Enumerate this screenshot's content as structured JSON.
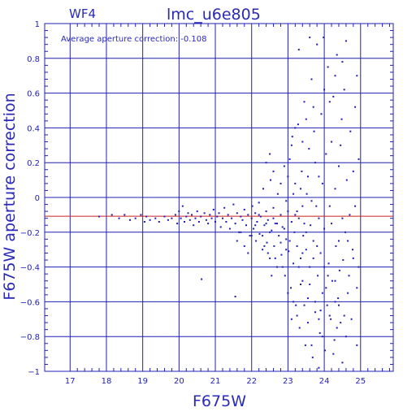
{
  "chart_data": {
    "type": "scatter",
    "title": "lmc_u6e805",
    "panel_label": "WF4",
    "annotation": "Average aperture correction: -0.108",
    "xlabel": "F675W",
    "ylabel": "F675W aperture correction",
    "xlim": [
      16.3,
      25.9
    ],
    "ylim": [
      -1,
      1
    ],
    "xticks": [
      "17",
      "18",
      "19",
      "20",
      "21",
      "22",
      "23",
      "24",
      "25"
    ],
    "yticks": [
      "1",
      "0.8",
      "0.6",
      "0.4",
      "0.2",
      "0",
      "−0.2",
      "−0.4",
      "−0.6",
      "−0.8",
      "−1"
    ],
    "grid": true,
    "reference_line": {
      "y": -0.108,
      "color": "#cc2222"
    },
    "colors": {
      "axis": "#1f1fb4",
      "points": "#1f1fb4",
      "grid": "#1f1fb4"
    },
    "points": [
      [
        17.8,
        -0.11
      ],
      [
        18.15,
        -0.1
      ],
      [
        18.35,
        -0.12
      ],
      [
        18.5,
        -0.1
      ],
      [
        18.65,
        -0.13
      ],
      [
        18.8,
        -0.12
      ],
      [
        18.95,
        -0.1
      ],
      [
        19.05,
        -0.14
      ],
      [
        19.1,
        -0.11
      ],
      [
        19.2,
        -0.13
      ],
      [
        19.35,
        -0.12
      ],
      [
        19.45,
        -0.14
      ],
      [
        19.6,
        -0.11
      ],
      [
        19.7,
        -0.13
      ],
      [
        19.8,
        -0.12
      ],
      [
        19.9,
        -0.1
      ],
      [
        19.95,
        -0.15
      ],
      [
        20.0,
        -0.08
      ],
      [
        20.05,
        -0.12
      ],
      [
        20.1,
        -0.05
      ],
      [
        20.15,
        -0.14
      ],
      [
        20.2,
        -0.11
      ],
      [
        20.25,
        -0.09
      ],
      [
        20.3,
        -0.13
      ],
      [
        20.35,
        -0.1
      ],
      [
        20.4,
        -0.16
      ],
      [
        20.45,
        -0.12
      ],
      [
        20.5,
        -0.08
      ],
      [
        20.55,
        -0.14
      ],
      [
        20.6,
        -0.11
      ],
      [
        20.62,
        -0.47
      ],
      [
        20.7,
        -0.09
      ],
      [
        20.75,
        -0.13
      ],
      [
        20.8,
        -0.15
      ],
      [
        20.85,
        -0.1
      ],
      [
        20.9,
        -0.12
      ],
      [
        20.95,
        -0.07
      ],
      [
        21.0,
        -0.14
      ],
      [
        21.05,
        -0.11
      ],
      [
        21.1,
        -0.09
      ],
      [
        21.15,
        -0.17
      ],
      [
        21.2,
        -0.12
      ],
      [
        21.25,
        -0.06
      ],
      [
        21.3,
        -0.14
      ],
      [
        21.35,
        -0.1
      ],
      [
        21.4,
        -0.18
      ],
      [
        21.45,
        -0.12
      ],
      [
        21.5,
        -0.04
      ],
      [
        21.55,
        -0.15
      ],
      [
        21.6,
        -0.09
      ],
      [
        21.65,
        -0.2
      ],
      [
        21.7,
        -0.11
      ],
      [
        21.75,
        -0.13
      ],
      [
        21.8,
        -0.07
      ],
      [
        21.85,
        -0.16
      ],
      [
        21.9,
        -0.1
      ],
      [
        21.95,
        -0.22
      ],
      [
        22.0,
        -0.12
      ],
      [
        22.02,
        -0.05
      ],
      [
        22.05,
        -0.18
      ],
      [
        22.1,
        -0.09
      ],
      [
        22.12,
        -0.25
      ],
      [
        22.15,
        -0.14
      ],
      [
        22.2,
        -0.03
      ],
      [
        22.22,
        -0.21
      ],
      [
        22.25,
        -0.11
      ],
      [
        22.3,
        -0.3
      ],
      [
        22.32,
        0.05
      ],
      [
        22.35,
        -0.16
      ],
      [
        22.4,
        -0.08
      ],
      [
        22.42,
        -0.26
      ],
      [
        22.45,
        -0.13
      ],
      [
        22.5,
        -0.35
      ],
      [
        22.52,
        0.1
      ],
      [
        22.55,
        -0.19
      ],
      [
        22.6,
        -0.06
      ],
      [
        22.62,
        -0.28
      ],
      [
        22.65,
        -0.15
      ],
      [
        22.7,
        -0.4
      ],
      [
        22.72,
        0.02
      ],
      [
        22.75,
        -0.22
      ],
      [
        22.8,
        -0.1
      ],
      [
        22.82,
        -0.33
      ],
      [
        22.85,
        -0.17
      ],
      [
        22.9,
        0.18
      ],
      [
        22.92,
        -0.45
      ],
      [
        22.95,
        -0.24
      ],
      [
        23.0,
        -0.08
      ],
      [
        23.02,
        -0.31
      ],
      [
        23.05,
        0.22
      ],
      [
        23.08,
        -0.52
      ],
      [
        23.1,
        -0.14
      ],
      [
        23.12,
        0.35
      ],
      [
        23.15,
        -0.38
      ],
      [
        23.18,
        -0.2
      ],
      [
        23.2,
        0.08
      ],
      [
        23.22,
        -0.62
      ],
      [
        23.25,
        -0.28
      ],
      [
        23.28,
        0.42
      ],
      [
        23.3,
        -0.12
      ],
      [
        23.32,
        -0.75
      ],
      [
        23.35,
        -0.35
      ],
      [
        23.38,
        0.15
      ],
      [
        23.4,
        -0.48
      ],
      [
        23.42,
        -0.22
      ],
      [
        23.45,
        0.55
      ],
      [
        23.48,
        -0.85
      ],
      [
        23.5,
        -0.3
      ],
      [
        23.52,
        0.02
      ],
      [
        23.55,
        -0.58
      ],
      [
        23.58,
        0.28
      ],
      [
        23.6,
        -0.4
      ],
      [
        23.62,
        -0.16
      ],
      [
        23.65,
        0.68
      ],
      [
        23.68,
        -0.92
      ],
      [
        23.7,
        -0.25
      ],
      [
        23.72,
        0.38
      ],
      [
        23.75,
        -0.66
      ],
      [
        23.78,
        -0.05
      ],
      [
        23.8,
        0.88
      ],
      [
        23.82,
        -0.45
      ],
      [
        23.85,
        0.12
      ],
      [
        23.88,
        -0.78
      ],
      [
        23.9,
        -0.32
      ],
      [
        23.92,
        0.48
      ],
      [
        23.95,
        -0.55
      ],
      [
        23.98,
        0.92
      ],
      [
        24.0,
        -0.18
      ],
      [
        24.02,
        -0.88
      ],
      [
        24.05,
        0.25
      ],
      [
        24.08,
        -0.62
      ],
      [
        24.1,
        0.75
      ],
      [
        24.12,
        -0.38
      ],
      [
        24.15,
        -0.05
      ],
      [
        24.18,
        -0.7
      ],
      [
        24.2,
        0.32
      ],
      [
        24.22,
        -0.48
      ],
      [
        24.25,
        0.58
      ],
      [
        24.28,
        -0.82
      ],
      [
        24.3,
        0.05
      ],
      [
        24.32,
        -0.28
      ],
      [
        24.35,
        0.82
      ],
      [
        24.38,
        -0.58
      ],
      [
        24.4,
        0.18
      ],
      [
        24.42,
        -0.42
      ],
      [
        24.45,
        -0.72
      ],
      [
        24.48,
        0.45
      ],
      [
        24.5,
        -0.12
      ],
      [
        24.52,
        -0.36
      ],
      [
        24.55,
        0.62
      ],
      [
        24.58,
        -0.2
      ],
      [
        24.62,
        0.1
      ],
      [
        24.68,
        -0.45
      ],
      [
        24.72,
        0.38
      ],
      [
        24.78,
        -0.3
      ],
      [
        24.85,
        -0.05
      ],
      [
        24.9,
        -0.52
      ],
      [
        24.95,
        0.22
      ],
      [
        23.25,
        -0.08
      ],
      [
        23.35,
        0.05
      ],
      [
        23.45,
        -0.15
      ],
      [
        23.55,
        0.12
      ],
      [
        23.65,
        -0.02
      ],
      [
        23.75,
        0.2
      ],
      [
        23.85,
        -0.12
      ],
      [
        23.95,
        0.08
      ],
      [
        22.9,
        -0.18
      ],
      [
        22.95,
        -0.02
      ],
      [
        23.05,
        -0.25
      ],
      [
        23.15,
        0.02
      ],
      [
        22.7,
        -0.15
      ],
      [
        22.8,
        -0.26
      ],
      [
        22.6,
        -0.12
      ],
      [
        22.5,
        -0.2
      ],
      [
        22.4,
        -0.15
      ],
      [
        22.3,
        -0.22
      ],
      [
        22.2,
        -0.1
      ],
      [
        22.1,
        -0.16
      ],
      [
        23.3,
        -0.4
      ],
      [
        23.4,
        -0.32
      ],
      [
        23.6,
        -0.5
      ],
      [
        23.7,
        -0.35
      ],
      [
        23.9,
        -0.65
      ],
      [
        24.1,
        -0.45
      ],
      [
        24.3,
        -0.6
      ],
      [
        24.2,
        -0.15
      ],
      [
        24.4,
        -0.25
      ],
      [
        24.6,
        -0.8
      ],
      [
        24.7,
        -0.1
      ],
      [
        24.8,
        -0.35
      ],
      [
        23.1,
        0.3
      ],
      [
        23.2,
        0.4
      ],
      [
        23.4,
        0.32
      ],
      [
        23.5,
        0.45
      ],
      [
        23.7,
        0.52
      ],
      [
        24.0,
        0.62
      ],
      [
        24.3,
        0.7
      ],
      [
        24.5,
        0.78
      ],
      [
        24.6,
        0.9
      ],
      [
        23.6,
        0.92
      ],
      [
        23.3,
        0.85
      ],
      [
        24.15,
        0.55
      ],
      [
        24.45,
        0.3
      ],
      [
        22.6,
        0.15
      ],
      [
        22.8,
        0.08
      ],
      [
        22.5,
        0.25
      ],
      [
        22.4,
        0.2
      ],
      [
        23.0,
        0.12
      ],
      [
        23.2,
        -0.1
      ],
      [
        23.4,
        -0.05
      ],
      [
        23.5,
        -0.2
      ],
      [
        23.8,
        -0.28
      ],
      [
        24.0,
        -0.4
      ],
      [
        24.25,
        -0.9
      ],
      [
        24.35,
        -0.75
      ],
      [
        24.5,
        -0.95
      ],
      [
        23.85,
        -0.98
      ],
      [
        23.95,
        -0.8
      ],
      [
        24.65,
        -0.55
      ],
      [
        24.75,
        -0.7
      ],
      [
        24.9,
        -0.85
      ],
      [
        24.95,
        -0.4
      ],
      [
        23.0,
        -0.55
      ],
      [
        23.1,
        -0.7
      ],
      [
        22.85,
        -0.4
      ],
      [
        22.95,
        -0.3
      ],
      [
        22.65,
        -0.35
      ],
      [
        22.55,
        -0.45
      ],
      [
        22.45,
        -0.32
      ],
      [
        22.35,
        -0.28
      ],
      [
        21.9,
        -0.32
      ],
      [
        21.8,
        -0.28
      ],
      [
        21.7,
        -0.2
      ],
      [
        21.6,
        -0.25
      ],
      [
        21.55,
        -0.57
      ],
      [
        22.0,
        -0.22
      ],
      [
        23.15,
        -0.6
      ],
      [
        23.25,
        -0.68
      ],
      [
        23.35,
        -0.5
      ],
      [
        23.45,
        -0.62
      ],
      [
        23.55,
        -0.72
      ],
      [
        23.65,
        -0.85
      ],
      [
        23.75,
        -0.6
      ],
      [
        23.85,
        -0.7
      ],
      [
        24.05,
        -0.52
      ],
      [
        24.15,
        -0.68
      ],
      [
        24.3,
        -0.48
      ],
      [
        24.4,
        -0.62
      ],
      [
        24.55,
        -0.68
      ],
      [
        24.65,
        -0.25
      ],
      [
        24.8,
        0.15
      ],
      [
        24.85,
        0.52
      ],
      [
        24.9,
        0.7
      ]
    ]
  }
}
